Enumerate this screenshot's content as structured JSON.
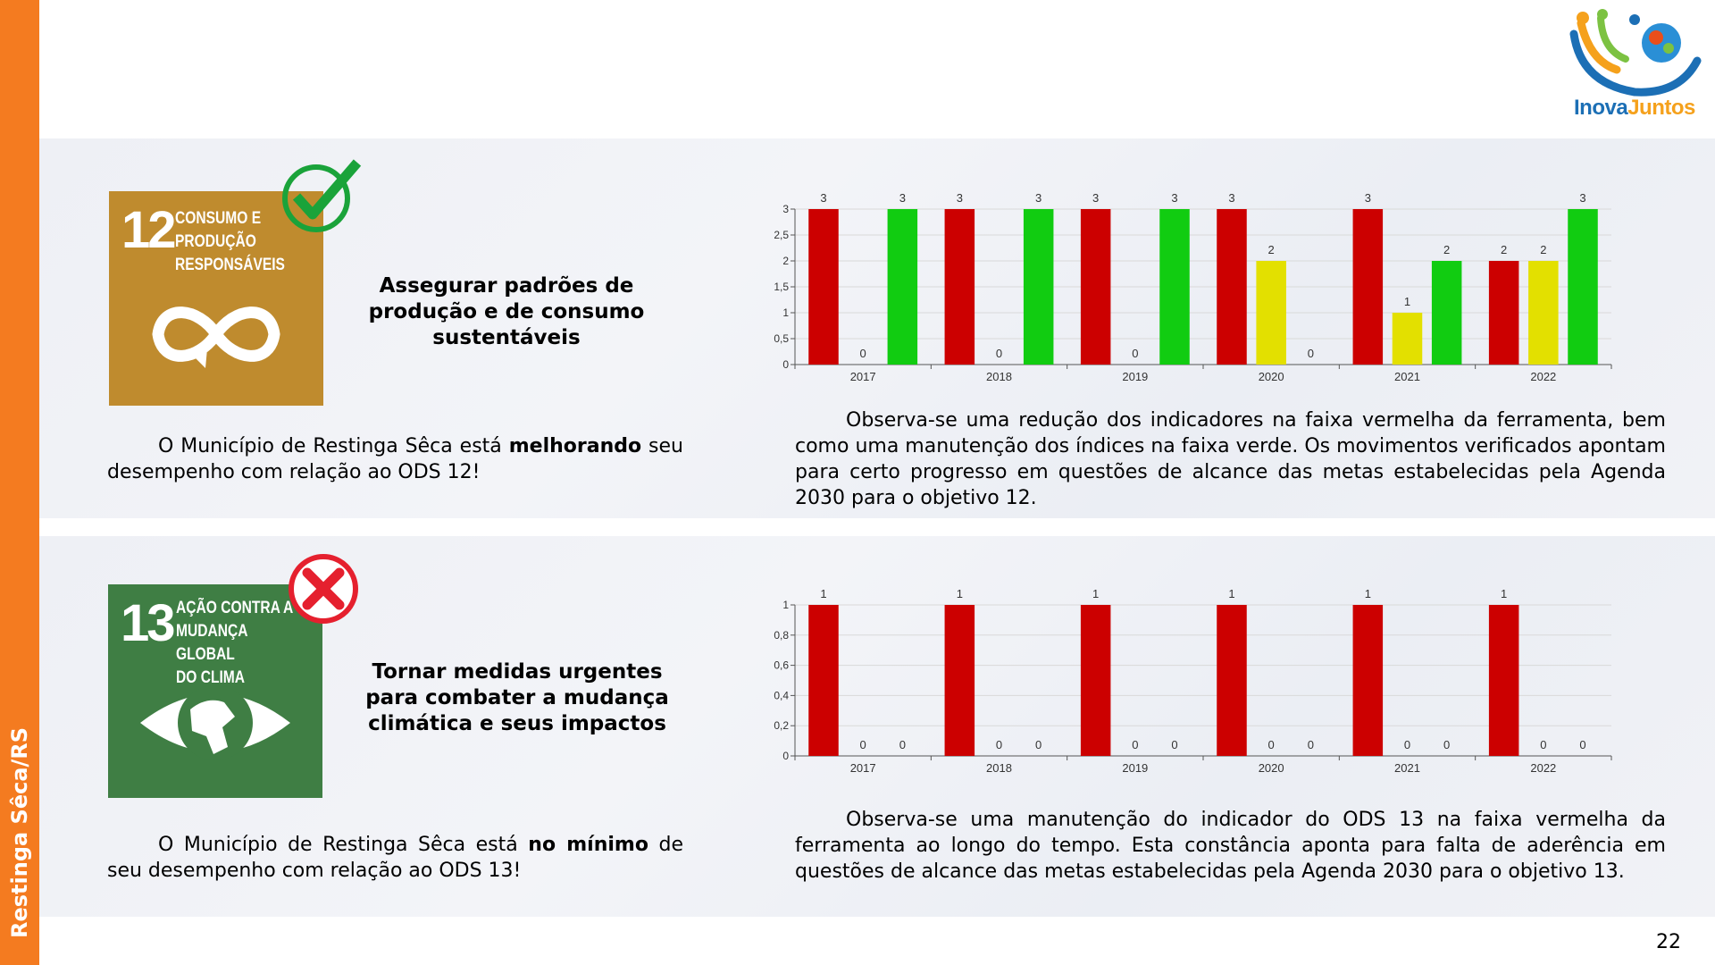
{
  "sidebar": "Restinga Sêca/RS",
  "logo": {
    "part1": "Inova",
    "part2": "Juntos"
  },
  "page_number": "22",
  "sections": [
    {
      "icon": {
        "number": "12",
        "lines": [
          "CONSUMO E",
          "PRODUÇÃO",
          "RESPONSÁVEIS"
        ]
      },
      "heading": [
        "Assegurar padrões de",
        "produção e de consumo",
        "sustentáveis"
      ],
      "summary": {
        "before": "O Município de Restinga Sêca está",
        "bold": "melhorando",
        "after": "seu desempenho com relação ao ODS 12!"
      },
      "analysis": "Observa-se uma redução dos indicadores na faixa vermelha da ferramenta, bem como uma manutenção dos índices na faixa verde. Os movimentos verificados apontam para certo progresso em questões de alcance das metas estabelecidas pela Agenda 2030 para o objetivo 12."
    },
    {
      "icon": {
        "number": "13",
        "lines": [
          "AÇÃO CONTRA A",
          "MUDANÇA GLOBAL",
          "DO CLIMA"
        ]
      },
      "heading": [
        "Tornar medidas urgentes",
        "para combater a mudança",
        "climática e seus impactos"
      ],
      "summary": {
        "before": "O Município de Restinga Sêca está",
        "bold": "no mínimo",
        "after": "de seu desempenho com relação ao ODS 13!"
      },
      "analysis": "Observa-se uma manutenção do indicador do ODS 13 na faixa vermelha da ferramenta ao longo do tempo. Esta constância aponta para falta de aderência em questões de alcance das metas estabelecidas pela Agenda 2030 para o objetivo 13."
    }
  ],
  "chart_data": [
    {
      "type": "bar",
      "categories": [
        "2017",
        "2018",
        "2019",
        "2020",
        "2021",
        "2022"
      ],
      "series": [
        {
          "color": "#cc0000",
          "values": [
            3,
            3,
            3,
            3,
            3,
            2
          ]
        },
        {
          "color": "#e3e000",
          "values": [
            0,
            0,
            0,
            2,
            1,
            2
          ]
        },
        {
          "color": "#11cc11",
          "values": [
            3,
            3,
            3,
            0,
            2,
            3
          ]
        }
      ],
      "ylim": [
        0,
        3
      ],
      "yticks": [
        0,
        {
          "value": 0.5,
          "label": "0,5"
        },
        1,
        {
          "value": 1.5,
          "label": "1,5"
        },
        2,
        {
          "value": 2.5,
          "label": "2,5"
        },
        3
      ],
      "grid": true
    },
    {
      "type": "bar",
      "categories": [
        "2017",
        "2018",
        "2019",
        "2020",
        "2021",
        "2022"
      ],
      "series": [
        {
          "color": "#cc0000",
          "values": [
            1,
            1,
            1,
            1,
            1,
            1
          ]
        },
        {
          "color": "#e3e000",
          "values": [
            0,
            0,
            0,
            0,
            0,
            0
          ]
        },
        {
          "color": "#11cc11",
          "values": [
            0,
            0,
            0,
            0,
            0,
            0
          ]
        }
      ],
      "ylim": [
        0,
        1
      ],
      "yticks": [
        0,
        {
          "value": 0.2,
          "label": "0,2"
        },
        {
          "value": 0.4,
          "label": "0,4"
        },
        {
          "value": 0.6,
          "label": "0,6"
        },
        {
          "value": 0.8,
          "label": "0,8"
        },
        1
      ],
      "grid": true
    }
  ]
}
